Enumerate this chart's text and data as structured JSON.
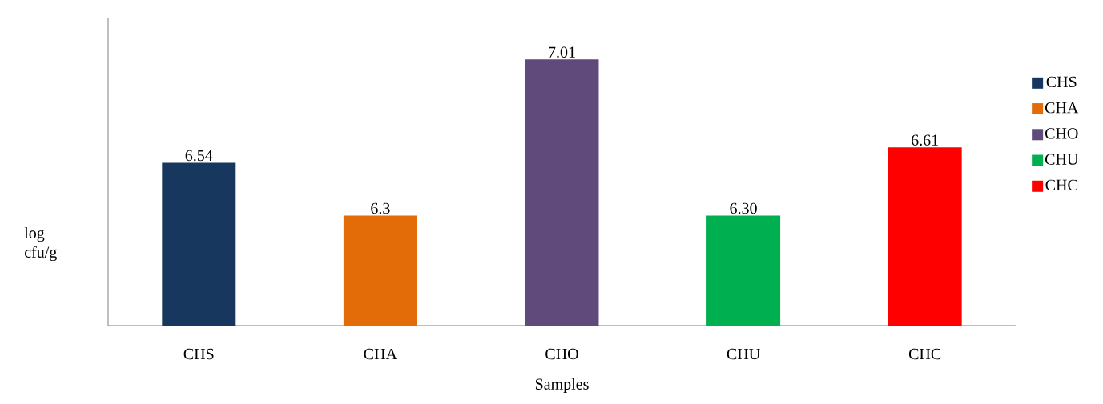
{
  "chart_data": {
    "type": "bar",
    "xlabel": "Samples",
    "ylabel": "log cfu/g",
    "categories": [
      "CHS",
      "CHA",
      "CHO",
      "CHU",
      "CHC"
    ],
    "series": [
      {
        "name": "CHS",
        "color": "#17375e",
        "values": [
          6.54,
          null,
          null,
          null,
          null
        ],
        "value_labels": [
          "6.54",
          null,
          null,
          null,
          null
        ]
      },
      {
        "name": "CHA",
        "color": "#e36c09",
        "values": [
          null,
          6.3,
          null,
          null,
          null
        ],
        "value_labels": [
          null,
          "6.3",
          null,
          null,
          null
        ]
      },
      {
        "name": "CHO",
        "color": "#604a7b",
        "values": [
          null,
          null,
          7.01,
          null,
          null
        ],
        "value_labels": [
          null,
          null,
          "7.01",
          null,
          null
        ]
      },
      {
        "name": "CHU",
        "color": "#00b050",
        "values": [
          null,
          null,
          null,
          6.3,
          null
        ],
        "value_labels": [
          null,
          null,
          null,
          "6.30",
          null
        ]
      },
      {
        "name": "CHC",
        "color": "#ff0000",
        "values": [
          null,
          null,
          null,
          null,
          6.61
        ],
        "value_labels": [
          null,
          null,
          null,
          null,
          "6.61"
        ]
      }
    ],
    "ylim": [
      5.8,
      7.2
    ],
    "tick_labels": "x",
    "legend": "right",
    "grid": false
  }
}
